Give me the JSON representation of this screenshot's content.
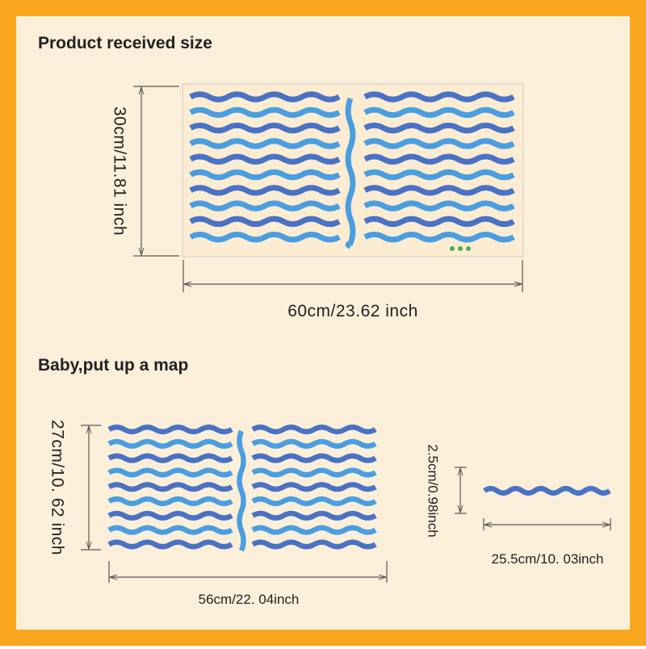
{
  "sections": [
    {
      "title": "Product received size",
      "height_label": "30cm/11.81 inch",
      "width_label": "60cm/23.62 inch"
    },
    {
      "title": "Baby,put up a map",
      "height_label": "27cm/10. 62 inch",
      "width_label": "56cm/22. 04inch",
      "strip_height_label": "2.5cm/0.98inch",
      "strip_width_label": "25.5cm/10. 03inch"
    }
  ]
}
